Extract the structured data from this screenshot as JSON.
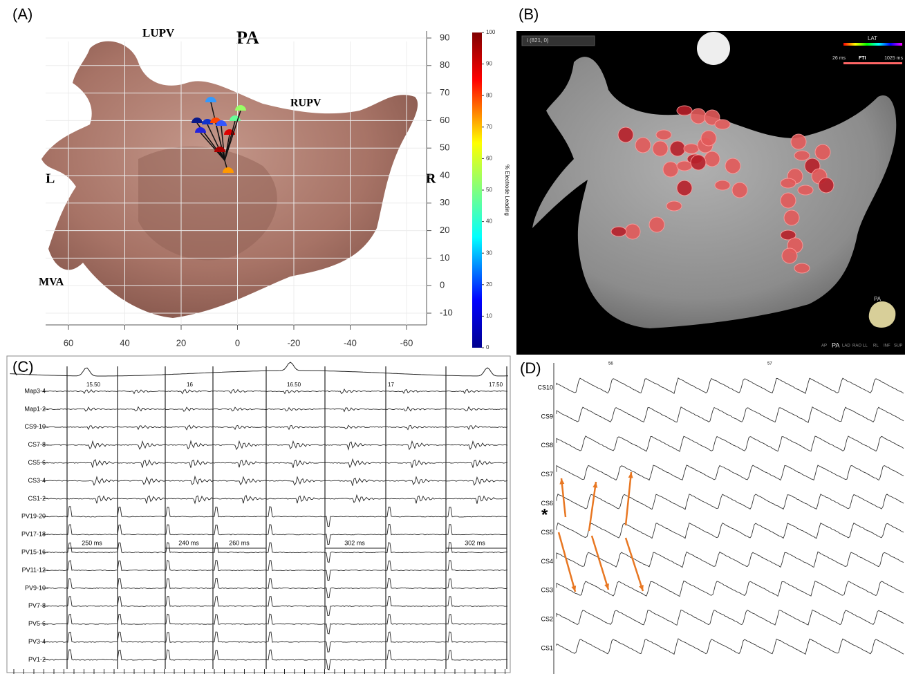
{
  "panels": {
    "a": {
      "label": "(A)",
      "annotations": [
        "LUPV",
        "PA",
        "RUPV",
        "L",
        "R",
        "MVA"
      ],
      "xticks": [
        60,
        40,
        20,
        0,
        -20,
        -40,
        -60
      ],
      "yticks": [
        90,
        80,
        70,
        60,
        50,
        40,
        30,
        20,
        10,
        0,
        -10
      ],
      "colorbar": {
        "ticks": [
          0,
          10,
          20,
          30,
          40,
          50,
          60,
          70,
          80,
          90,
          100
        ],
        "label": "% Electrode Leading"
      }
    },
    "b": {
      "label": "(B)",
      "dropdown": "i (821, 0)",
      "legend_title": "LAT",
      "range_min": "26 ms",
      "range_name": "FTI",
      "range_max": "1025 ms",
      "inset_label": "PA",
      "views": [
        "AP",
        "PA",
        "LAD",
        "RAO",
        "LL",
        "RL",
        "INF",
        "SUP"
      ]
    },
    "c": {
      "label": "(C)",
      "time_ticks": [
        "15.50",
        "16",
        "16.50",
        "17",
        "17.50"
      ],
      "channels": [
        "Map3-4",
        "Map1-2",
        "CS9-10",
        "CS7-8",
        "CS5-6",
        "CS3-4",
        "CS1-2",
        "PV19-20",
        "PV17-18",
        "PV15-16",
        "PV11-12",
        "PV9-10",
        "PV7-8",
        "PV5-6",
        "PV3-4",
        "PV1-2"
      ],
      "intervals": [
        "250 ms",
        "240 ms",
        "260 ms",
        "302 ms",
        "302 ms"
      ]
    },
    "d": {
      "label": "(D)",
      "time_ticks": [
        "56",
        "57"
      ],
      "marker": "*",
      "channels": [
        "CS10",
        "CS9",
        "CS8",
        "CS7",
        "CS6",
        "CS5",
        "CS4",
        "CS3",
        "CS2",
        "CS1"
      ]
    }
  }
}
